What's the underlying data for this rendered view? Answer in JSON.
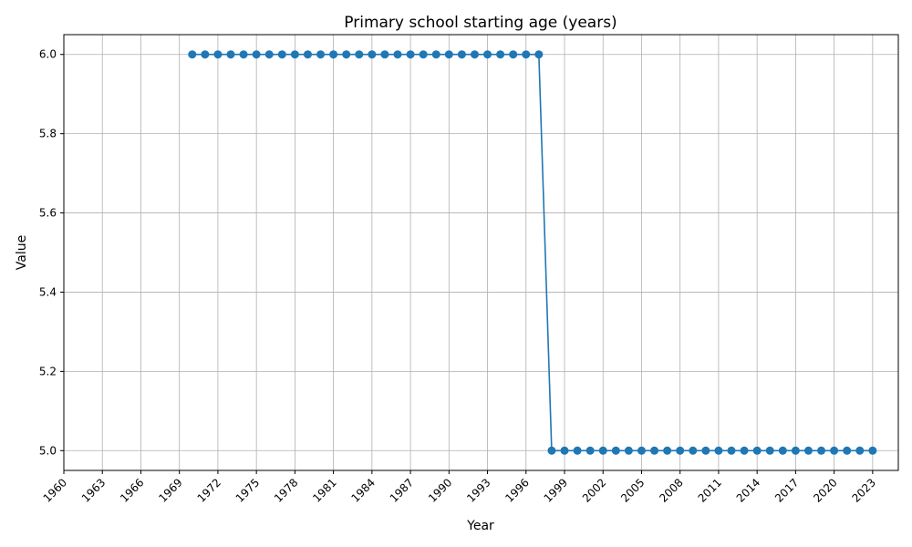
{
  "chart_data": {
    "type": "line",
    "title": "Primary school starting age (years)",
    "xlabel": "Year",
    "ylabel": "Value",
    "xlim": [
      1960,
      2025
    ],
    "ylim": [
      4.95,
      6.05
    ],
    "x_ticks": [
      "1960",
      "1963",
      "1966",
      "1969",
      "1972",
      "1975",
      "1978",
      "1981",
      "1984",
      "1987",
      "1990",
      "1993",
      "1996",
      "1999",
      "2002",
      "2005",
      "2008",
      "2011",
      "2014",
      "2017",
      "2020",
      "2023"
    ],
    "y_ticks": [
      "5.0",
      "5.2",
      "5.4",
      "5.6",
      "5.8",
      "6.0"
    ],
    "grid": true,
    "series": [
      {
        "color": "#1f77b4",
        "x": [
          1970,
          1971,
          1972,
          1973,
          1974,
          1975,
          1976,
          1977,
          1978,
          1979,
          1980,
          1981,
          1982,
          1983,
          1984,
          1985,
          1986,
          1987,
          1988,
          1989,
          1990,
          1991,
          1992,
          1993,
          1994,
          1995,
          1996,
          1997,
          1998,
          1999,
          2000,
          2001,
          2002,
          2003,
          2004,
          2005,
          2006,
          2007,
          2008,
          2009,
          2010,
          2011,
          2012,
          2013,
          2014,
          2015,
          2016,
          2017,
          2018,
          2019,
          2020,
          2021,
          2022,
          2023
        ],
        "values": [
          6,
          6,
          6,
          6,
          6,
          6,
          6,
          6,
          6,
          6,
          6,
          6,
          6,
          6,
          6,
          6,
          6,
          6,
          6,
          6,
          6,
          6,
          6,
          6,
          6,
          6,
          6,
          6,
          5,
          5,
          5,
          5,
          5,
          5,
          5,
          5,
          5,
          5,
          5,
          5,
          5,
          5,
          5,
          5,
          5,
          5,
          5,
          5,
          5,
          5,
          5,
          5,
          5,
          5
        ]
      }
    ]
  }
}
